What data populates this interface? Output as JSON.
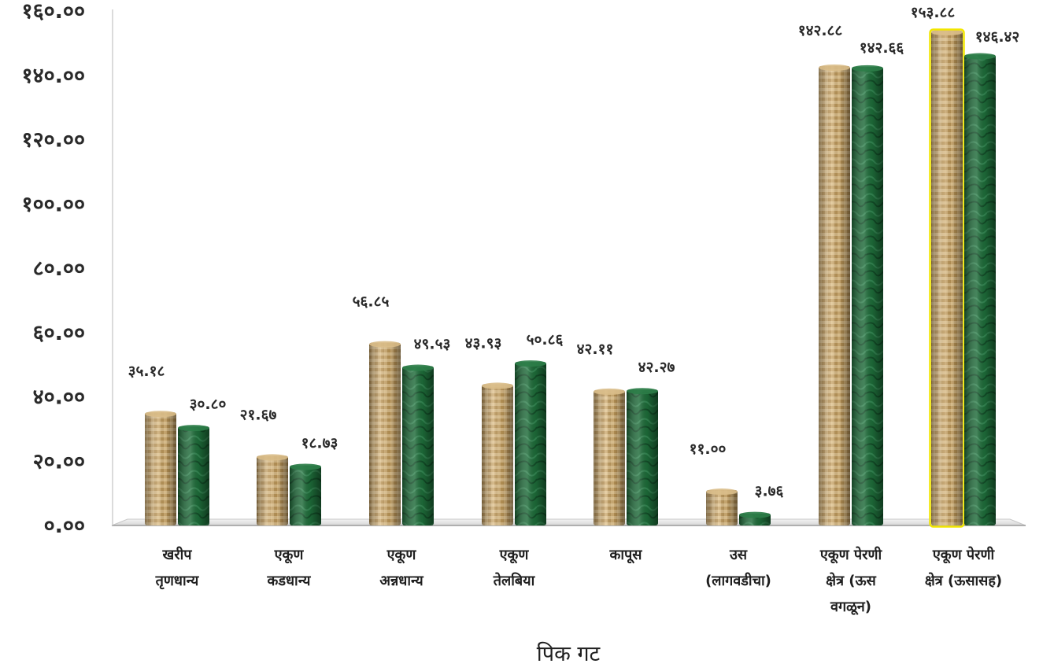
{
  "chart_data": {
    "type": "bar",
    "xlabel": "पिक गट",
    "ylim": [
      0,
      160
    ],
    "yticks": [
      "०.००",
      "२०.००",
      "४०.००",
      "६०.००",
      "८०.००",
      "१००.००",
      "१२०.००",
      "१४०.००",
      "१६०.००"
    ],
    "categories": [
      [
        "खरीप",
        "तृणधान्य"
      ],
      [
        "एकूण",
        "कडधान्य"
      ],
      [
        "एकूण",
        "अन्नधान्य"
      ],
      [
        "एकूण",
        "तेलबिया"
      ],
      [
        "कापूस"
      ],
      [
        "उस",
        "(लागवडीचा)"
      ],
      [
        "एकूण पेरणी",
        "क्षेत्र (ऊस",
        "वगळून)"
      ],
      [
        "एकूण पेरणी",
        "क्षेत्र (ऊसासह)"
      ]
    ],
    "series": [
      {
        "color": "#c9a56b",
        "values": [
          35.18,
          21.67,
          56.85,
          43.93,
          42.11,
          11.0,
          142.88,
          153.88
        ],
        "labels": [
          "३५.१८",
          "२१.६७",
          "५६.८५",
          "४३.९३",
          "४२.११",
          "११.००",
          "१४२.८८",
          "१५३.८८"
        ]
      },
      {
        "color": "#1f6b3a",
        "values": [
          30.8,
          18.73,
          49.53,
          50.86,
          42.27,
          3.76,
          142.66,
          146.42
        ],
        "labels": [
          "३०.८०",
          "१८.७३",
          "४९.५३",
          "५०.८६",
          "४२.२७",
          "३.७६",
          "१४२.६६",
          "१४६.४२"
        ]
      }
    ],
    "highlight": {
      "series": 0,
      "category": 7,
      "color": "#f2e600"
    },
    "grid": false,
    "legend": "none"
  }
}
